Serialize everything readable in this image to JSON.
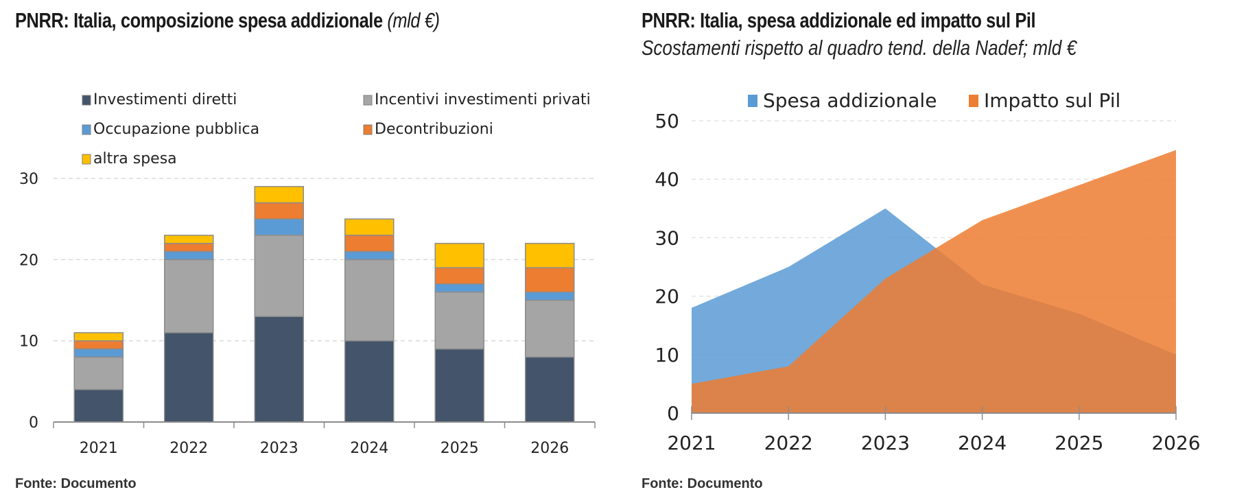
{
  "left_chart": {
    "title": "PNRR: Italia, composizione spesa addizionale",
    "title_unit": "(mld €)",
    "footer": "Fonte: Documento"
  },
  "right_chart": {
    "title": "PNRR: Italia, spesa addizionale ed impatto sul Pil",
    "subtitle": "Scostamenti rispetto al quadro tend. della Nadef; mld €",
    "footer": "Fonte: Documento"
  },
  "chart_data": [
    {
      "type": "bar",
      "stacked": true,
      "title": "PNRR: Italia, composizione spesa addizionale (mld €)",
      "xlabel": "",
      "ylabel": "",
      "categories": [
        "2021",
        "2022",
        "2023",
        "2024",
        "2025",
        "2026"
      ],
      "ylim": [
        0,
        30
      ],
      "yticks": [
        "0",
        "10",
        "20",
        "30"
      ],
      "grid": true,
      "legend_position": "top",
      "series": [
        {
          "name": "Investimenti diretti",
          "color": "#44546a",
          "values": [
            4,
            11,
            13,
            10,
            9,
            8
          ]
        },
        {
          "name": "Incentivi investimenti privati",
          "color": "#a5a5a5",
          "values": [
            4,
            9,
            10,
            10,
            7,
            7
          ]
        },
        {
          "name": "Occupazione pubblica",
          "color": "#5b9bd5",
          "values": [
            1,
            1,
            2,
            1,
            1,
            1
          ]
        },
        {
          "name": "Decontribuzioni",
          "color": "#ed7d31",
          "values": [
            1,
            1,
            2,
            2,
            2,
            3
          ]
        },
        {
          "name": "altra spesa",
          "color": "#ffc000",
          "values": [
            1,
            1,
            2,
            2,
            3,
            3
          ]
        }
      ]
    },
    {
      "type": "area",
      "title": "PNRR: Italia, spesa addizionale ed impatto sul Pil",
      "subtitle": "Scostamenti rispetto al quadro tend. della Nadef; mld €",
      "xlabel": "",
      "ylabel": "",
      "categories": [
        "2021",
        "2022",
        "2023",
        "2024",
        "2025",
        "2026"
      ],
      "ylim": [
        0,
        50
      ],
      "yticks": [
        "0",
        "10",
        "20",
        "30",
        "40",
        "50"
      ],
      "grid": true,
      "legend_position": "top",
      "series": [
        {
          "name": "Spesa addizionale",
          "color": "#5b9bd5",
          "values": [
            18,
            25,
            35,
            22,
            17,
            10
          ]
        },
        {
          "name": "Impatto sul Pil",
          "color": "#ed7d31",
          "values": [
            5,
            8,
            23,
            33,
            39,
            45
          ]
        }
      ]
    }
  ]
}
